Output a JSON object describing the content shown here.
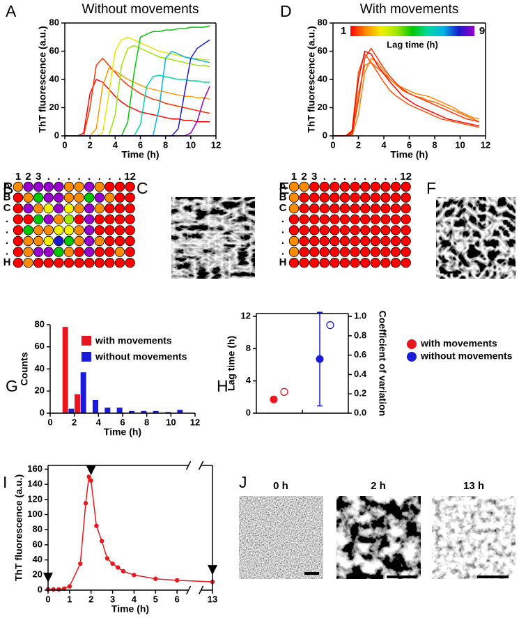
{
  "panel_labels": [
    "A",
    "B",
    "C",
    "D",
    "E",
    "F",
    "G",
    "H",
    "I",
    "J"
  ],
  "lag_colors": [
    "#ff0000",
    "#ff8c00",
    "#f0f000",
    "#a0e600",
    "#00c800",
    "#00d9a0",
    "#00b3e6",
    "#1a1acc",
    "#9900cc"
  ],
  "chart_data": [
    {
      "type": "line",
      "title": "Without movements",
      "x_label": "Time (h)",
      "y_label": "ThT fluorescence (a.u.)",
      "x": [
        0,
        0.5,
        1,
        1.5,
        2,
        2.5,
        3,
        3.5,
        4,
        4.5,
        5,
        5.5,
        6,
        6.5,
        7,
        7.5,
        8,
        8.5,
        9,
        9.5,
        10,
        10.5,
        11,
        11.5
      ],
      "series": [
        {
          "color": "#ff0000",
          "values": [
            0,
            0,
            0,
            2,
            30,
            40,
            38,
            33,
            28,
            24,
            21,
            19,
            17,
            16,
            15,
            14,
            13,
            12,
            12,
            11,
            11,
            10,
            10,
            10
          ]
        },
        {
          "color": "#ff3300",
          "values": [
            0,
            0,
            0,
            0,
            20,
            50,
            55,
            50,
            45,
            40,
            36,
            33,
            30,
            28,
            26,
            25,
            23,
            22,
            21,
            20,
            19,
            18,
            17,
            16
          ]
        },
        {
          "color": "#ff9900",
          "values": [
            0,
            0,
            0,
            0,
            0,
            5,
            35,
            48,
            46,
            43,
            40,
            38,
            36,
            34,
            33,
            32,
            31,
            30,
            29,
            28,
            28,
            27,
            27,
            26
          ]
        },
        {
          "color": "#e6e600",
          "values": [
            0,
            0,
            0,
            0,
            0,
            0,
            2,
            30,
            60,
            68,
            70,
            68,
            66,
            64,
            62,
            60,
            59,
            58,
            57,
            56,
            55,
            55,
            54,
            54
          ]
        },
        {
          "color": "#99e600",
          "values": [
            0,
            0,
            0,
            0,
            0,
            0,
            0,
            0,
            15,
            50,
            62,
            64,
            62,
            60,
            58,
            56,
            55,
            54,
            53,
            52,
            51,
            50,
            50,
            49
          ]
        },
        {
          "color": "#00cc00",
          "values": [
            0,
            0,
            0,
            0,
            0,
            0,
            0,
            0,
            0,
            0,
            10,
            45,
            70,
            72,
            74,
            74,
            75,
            75,
            76,
            76,
            77,
            77,
            77,
            78
          ]
        },
        {
          "color": "#00d9a0",
          "values": [
            0,
            0,
            0,
            0,
            0,
            0,
            0,
            0,
            0,
            0,
            0,
            0,
            8,
            35,
            42,
            43,
            42,
            41,
            40,
            40,
            39,
            39,
            38,
            38
          ]
        },
        {
          "color": "#00b3e6",
          "values": [
            0,
            0,
            0,
            0,
            0,
            0,
            0,
            0,
            0,
            0,
            0,
            0,
            0,
            0,
            0,
            20,
            55,
            60,
            58,
            56,
            55,
            54,
            53,
            52
          ]
        },
        {
          "color": "#1a1acc",
          "values": [
            0,
            0,
            0,
            0,
            0,
            0,
            0,
            0,
            0,
            0,
            0,
            0,
            0,
            0,
            0,
            0,
            0,
            0,
            5,
            30,
            55,
            62,
            65,
            68
          ]
        },
        {
          "color": "#9900cc",
          "values": [
            0,
            0,
            0,
            0,
            0,
            0,
            0,
            0,
            0,
            0,
            0,
            0,
            0,
            0,
            0,
            0,
            0,
            0,
            0,
            0,
            2,
            10,
            25,
            35
          ]
        }
      ],
      "xlim": [
        0,
        12
      ],
      "xticks": [
        0,
        2,
        4,
        6,
        8,
        10,
        12
      ],
      "ylim": [
        0,
        80
      ],
      "yticks": [
        0,
        20,
        40,
        60,
        80
      ]
    },
    {
      "type": "line",
      "title": "With movements",
      "x_label": "Time (h)",
      "y_label": "ThT fluorescence (a.u.)",
      "colorbar": {
        "title": "Lag time (h)",
        "ticks": [
          1,
          9
        ]
      },
      "x": [
        0,
        0.5,
        1,
        1.5,
        2,
        2.5,
        3,
        3.5,
        4,
        4.5,
        5,
        5.5,
        6,
        6.5,
        7,
        7.5,
        8,
        8.5,
        9,
        9.5,
        10,
        10.5,
        11,
        11.5
      ],
      "series": [
        {
          "color": "#ff8000",
          "values": [
            0,
            0,
            0,
            0,
            15,
            45,
            55,
            52,
            46,
            40,
            36,
            34,
            32,
            30,
            29,
            28,
            26,
            24,
            22,
            20,
            17,
            15,
            13,
            12
          ]
        },
        {
          "color": "#ff6a00",
          "values": [
            0,
            0,
            0,
            2,
            30,
            50,
            52,
            48,
            44,
            40,
            36,
            32,
            30,
            28,
            27,
            25,
            24,
            22,
            20,
            18,
            16,
            14,
            12,
            10
          ]
        },
        {
          "color": "#ff3000",
          "values": [
            0,
            0,
            0,
            1,
            25,
            55,
            62,
            55,
            48,
            42,
            37,
            33,
            30,
            28,
            26,
            24,
            22,
            20,
            18,
            16,
            14,
            12,
            11,
            10
          ]
        },
        {
          "color": "#ff5000",
          "values": [
            0,
            0,
            0,
            4,
            45,
            58,
            52,
            45,
            38,
            32,
            28,
            25,
            22,
            20,
            18,
            16,
            14,
            12,
            11,
            10,
            9,
            8,
            7,
            6
          ]
        },
        {
          "color": "#ff0000",
          "values": [
            0,
            0,
            0,
            3,
            40,
            60,
            58,
            50,
            44,
            38,
            33,
            28,
            25,
            22,
            20,
            18,
            16,
            14,
            12,
            11,
            10,
            9,
            8,
            7
          ]
        }
      ],
      "xlim": [
        0,
        12
      ],
      "xticks": [
        0,
        2,
        4,
        6,
        8,
        10,
        12
      ],
      "ylim": [
        0,
        80
      ],
      "yticks": [
        0,
        20,
        40,
        60,
        80
      ]
    },
    {
      "type": "bar",
      "x_label": "Time (h)",
      "y_label": "Counts",
      "series": [
        {
          "name": "with movements",
          "color": "#e8171f",
          "x": [
            1.25,
            2.25
          ],
          "values": [
            78,
            17
          ]
        },
        {
          "name": "without movements",
          "color": "#1a1adb",
          "x": [
            1.75,
            2.75,
            3.75,
            4.75,
            5.75,
            6.75,
            7.75,
            8.75,
            9.75,
            10.75
          ],
          "values": [
            4,
            37,
            12,
            5,
            5,
            2,
            2,
            2,
            1,
            3
          ]
        }
      ],
      "xlim": [
        0,
        12
      ],
      "xticks": [
        0,
        2,
        4,
        6,
        8,
        10,
        12
      ],
      "ylim": [
        0,
        80
      ],
      "yticks": [
        0,
        20,
        40,
        60,
        80
      ]
    },
    {
      "type": "errorbar",
      "y_label": "Lag time (h)",
      "y2_label": "Coefficient of variation",
      "series": [
        {
          "name": "with movements",
          "color": "#e8171f",
          "lag": 1.7,
          "lag_error": 0.3,
          "cv": 0.22
        },
        {
          "name": "without movements",
          "color": "#1a1adb",
          "lag": 6.7,
          "lag_error": 5.8,
          "cv": 0.91
        }
      ],
      "ylim": [
        0,
        12.35
      ],
      "yticks": [
        0,
        4,
        8,
        12
      ],
      "y2lim": [
        0,
        1.03
      ],
      "y2ticks": [
        {
          "value": 0,
          "label": "0.0"
        },
        0.2,
        0.4,
        0.6,
        0.8,
        {
          "value": 1,
          "label": "1.0"
        }
      ]
    },
    {
      "type": "line",
      "x_label": "Time (h)",
      "y_label": "ThT fluorescence (a.u.)",
      "color": "#e8171f",
      "x": [
        0,
        0.25,
        0.5,
        0.75,
        1,
        1.5,
        1.75,
        1.9,
        2,
        2.25,
        2.5,
        2.75,
        3,
        3.25,
        3.5,
        4,
        5,
        6,
        13
      ],
      "values": [
        1,
        1,
        1,
        2,
        5,
        35,
        115,
        150,
        145,
        85,
        65,
        42,
        35,
        30,
        25,
        20,
        15,
        13,
        11
      ],
      "markers": [
        0,
        2,
        13
      ],
      "xlim": [
        0,
        13
      ],
      "axis_break": [
        6.5,
        12.5
      ],
      "xticks": [
        0,
        1,
        2,
        3,
        4,
        5,
        6,
        13
      ],
      "ylim": [
        0,
        165
      ],
      "yticks": [
        0,
        20,
        40,
        60,
        80,
        100,
        120,
        140,
        160
      ]
    }
  ],
  "plates": [
    {
      "rows": [
        "A",
        "B",
        "C",
        ".",
        ".",
        ".",
        ".",
        "H"
      ],
      "columns": [
        "1",
        "2",
        "3",
        ".",
        ".",
        ".",
        ".",
        ".",
        ".",
        ".",
        ".",
        "12"
      ],
      "wells": [
        [
          2,
          9,
          9,
          9,
          9,
          2,
          2,
          9,
          2,
          1,
          1,
          1
        ],
        [
          1,
          2,
          5,
          9,
          9,
          2,
          2,
          5,
          9,
          2,
          1,
          1
        ],
        [
          1,
          9,
          2,
          3,
          9,
          3,
          2,
          9,
          2,
          1,
          1,
          1
        ],
        [
          1,
          1,
          5,
          9,
          2,
          4,
          1,
          9,
          1,
          1,
          1,
          1
        ],
        [
          1,
          5,
          2,
          2,
          3,
          3,
          2,
          9,
          1,
          1,
          1,
          1
        ],
        [
          1,
          2,
          2,
          3,
          8,
          5,
          2,
          9,
          2,
          1,
          1,
          1
        ],
        [
          1,
          2,
          9,
          9,
          5,
          2,
          1,
          9,
          1,
          1,
          2,
          1
        ],
        [
          1,
          2,
          1,
          1,
          1,
          1,
          1,
          1,
          1,
          1,
          1,
          1
        ]
      ]
    },
    {
      "rows": [
        "A",
        "B",
        "C",
        ".",
        ".",
        ".",
        ".",
        "H"
      ],
      "columns": [
        "1",
        "2",
        "3",
        ".",
        ".",
        ".",
        ".",
        ".",
        ".",
        ".",
        ".",
        "12"
      ],
      "wells": [
        [
          2,
          2,
          1,
          1,
          1,
          1,
          1,
          1,
          1,
          1,
          1,
          1
        ],
        [
          2,
          1,
          1,
          1,
          1,
          1,
          1,
          1,
          1,
          1,
          1,
          1
        ],
        [
          2,
          1,
          1,
          1,
          1,
          1,
          1,
          1,
          1,
          1,
          1,
          1
        ],
        [
          1,
          1,
          1,
          1,
          1,
          1,
          1,
          1,
          1,
          1,
          1,
          1
        ],
        [
          1,
          1,
          1,
          1,
          1,
          1,
          1,
          1,
          1,
          1,
          1,
          1
        ],
        [
          2,
          1,
          1,
          1,
          1,
          1,
          1,
          1,
          1,
          1,
          1,
          1
        ],
        [
          2,
          1,
          1,
          1,
          1,
          1,
          1,
          1,
          1,
          1,
          1,
          1
        ],
        [
          1,
          1,
          1,
          1,
          1,
          1,
          1,
          1,
          1,
          1,
          1,
          1
        ]
      ]
    }
  ],
  "micrograph_labels": [
    "0 h",
    "2 h",
    "13 h"
  ]
}
